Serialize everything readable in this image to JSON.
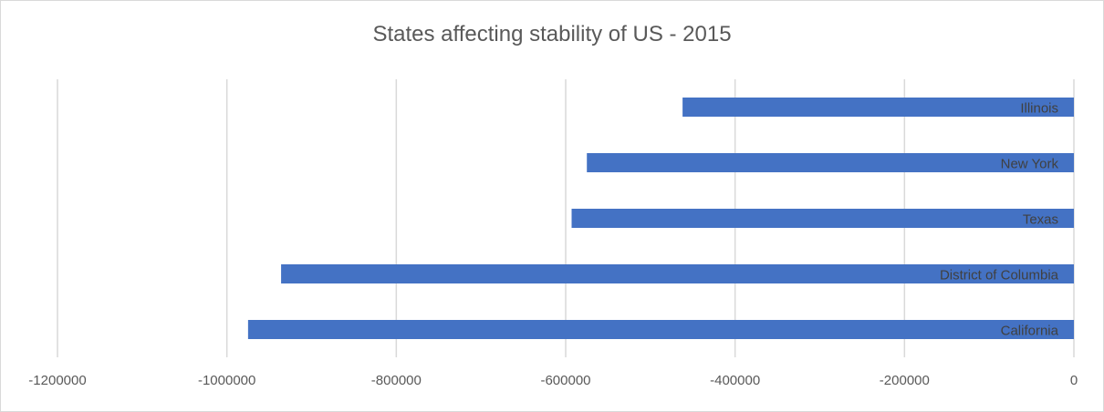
{
  "chart_data": {
    "type": "bar",
    "orientation": "horizontal",
    "title": "States affecting stability of US - 2015",
    "xlabel": "",
    "ylabel": "",
    "categories": [
      "Illinois",
      "New York",
      "Texas",
      "District of Columbia",
      "California"
    ],
    "values": [
      -462000,
      -575000,
      -593000,
      -936000,
      -975000
    ],
    "xlim": [
      -1200000,
      0
    ],
    "xticks": [
      -1200000,
      -1000000,
      -800000,
      -600000,
      -400000,
      -200000,
      0
    ],
    "xtick_labels": [
      "-1200000",
      "-1000000",
      "-800000",
      "-600000",
      "-400000",
      "-200000",
      "0"
    ],
    "grid": true,
    "legend": "none",
    "colors": {
      "bar": "#4472c4",
      "grid": "#d9d9d9",
      "text": "#595959",
      "label": "#404040"
    }
  }
}
